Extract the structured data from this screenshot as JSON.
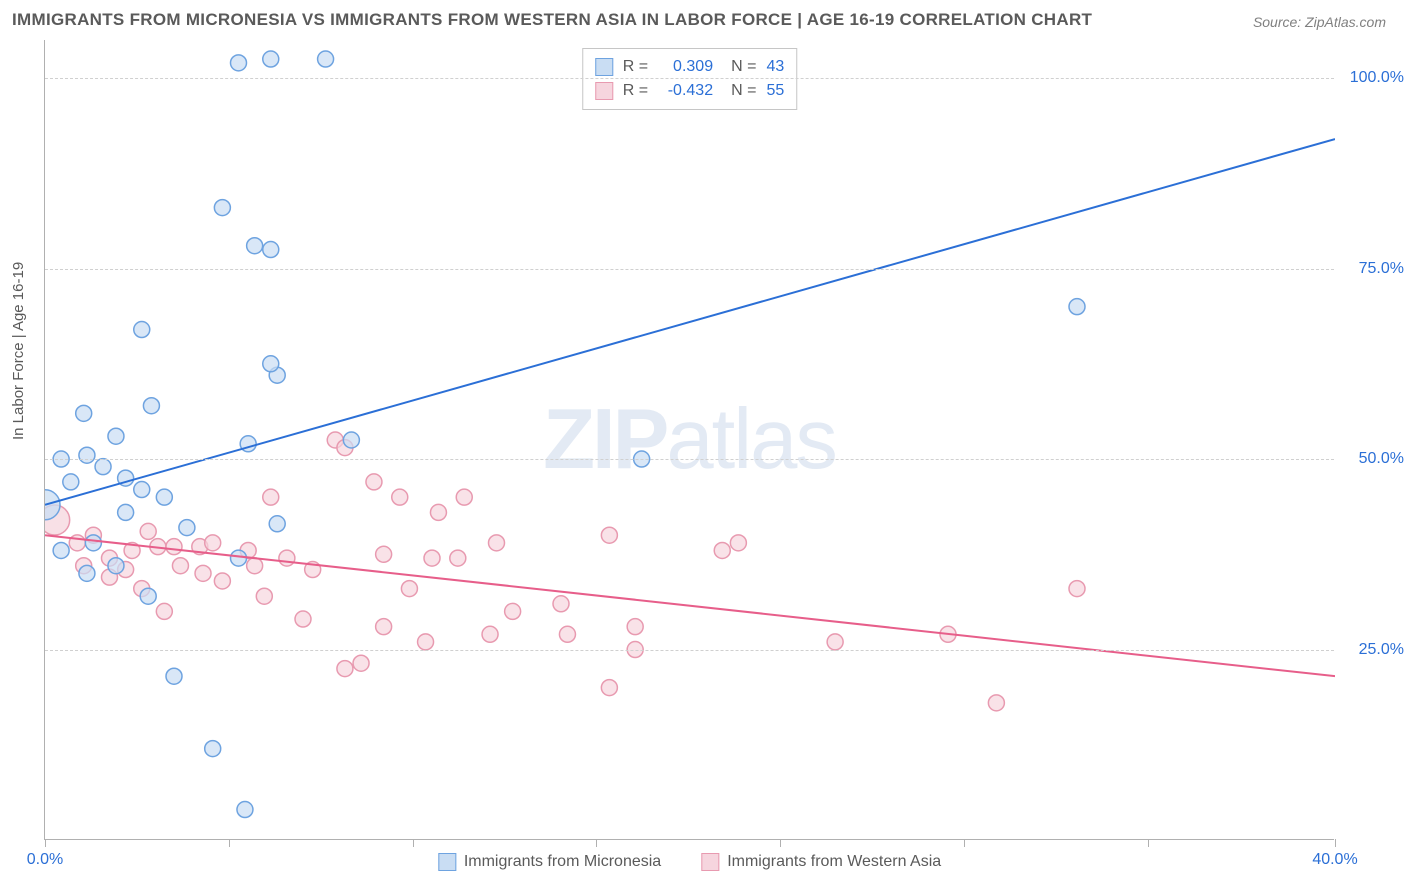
{
  "title": "IMMIGRANTS FROM MICRONESIA VS IMMIGRANTS FROM WESTERN ASIA IN LABOR FORCE | AGE 16-19 CORRELATION CHART",
  "source": "Source: ZipAtlas.com",
  "ylabel": "In Labor Force | Age 16-19",
  "watermark_bold": "ZIP",
  "watermark_rest": "atlas",
  "chart": {
    "type": "scatter",
    "background_color": "#ffffff",
    "grid_color": "#d0d0d0",
    "axis_color": "#b0b0b0",
    "tick_label_color": "#2b6fd6",
    "tick_label_fontsize": 16,
    "axis_label_color": "#5a5a5a",
    "axis_label_fontsize": 15,
    "xlim": [
      0,
      40
    ],
    "ylim": [
      0,
      105
    ],
    "xticks": [
      0,
      5.7,
      11.4,
      17.1,
      22.8,
      28.5,
      34.2,
      40
    ],
    "xtick_labels": [
      "0.0%",
      "",
      "",
      "",
      "",
      "",
      "",
      "40.0%"
    ],
    "yticks": [
      25,
      50,
      75,
      100
    ],
    "ytick_labels": [
      "25.0%",
      "50.0%",
      "75.0%",
      "100.0%"
    ],
    "marker_radius": 8,
    "large_marker_radius": 15,
    "marker_stroke_width": 1.5,
    "line_width": 2,
    "series": [
      {
        "name": "Immigrants from Micronesia",
        "fill_color": "#c9ddf3",
        "stroke_color": "#6ea3e0",
        "line_color": "#2b6fd6",
        "r_value": "0.309",
        "n_value": "43",
        "trend_line": {
          "x1": 0,
          "y1": 44,
          "x2": 40,
          "y2": 92
        },
        "large_points": [
          {
            "x": 0,
            "y": 44
          }
        ],
        "points": [
          {
            "x": 1.3,
            "y": 35
          },
          {
            "x": 0.8,
            "y": 47
          },
          {
            "x": 0.5,
            "y": 50
          },
          {
            "x": 0.5,
            "y": 38
          },
          {
            "x": 1.2,
            "y": 56
          },
          {
            "x": 1.3,
            "y": 50.5
          },
          {
            "x": 1.8,
            "y": 49
          },
          {
            "x": 1.5,
            "y": 39
          },
          {
            "x": 2.5,
            "y": 43
          },
          {
            "x": 2.2,
            "y": 36
          },
          {
            "x": 2.2,
            "y": 53
          },
          {
            "x": 2.5,
            "y": 47.5
          },
          {
            "x": 3.0,
            "y": 46
          },
          {
            "x": 3.3,
            "y": 57
          },
          {
            "x": 3.0,
            "y": 67
          },
          {
            "x": 3.2,
            "y": 32
          },
          {
            "x": 3.7,
            "y": 45
          },
          {
            "x": 4.0,
            "y": 21.5
          },
          {
            "x": 4.4,
            "y": 41
          },
          {
            "x": 5.5,
            "y": 83
          },
          {
            "x": 6.0,
            "y": 102
          },
          {
            "x": 5.2,
            "y": 12
          },
          {
            "x": 6.0,
            "y": 37
          },
          {
            "x": 6.2,
            "y": 4
          },
          {
            "x": 6.3,
            "y": 52
          },
          {
            "x": 6.5,
            "y": 78
          },
          {
            "x": 7.0,
            "y": 102.5
          },
          {
            "x": 7.0,
            "y": 77.5
          },
          {
            "x": 7.2,
            "y": 61
          },
          {
            "x": 7.0,
            "y": 62.5
          },
          {
            "x": 7.2,
            "y": 41.5
          },
          {
            "x": 8.7,
            "y": 102.5
          },
          {
            "x": 9.5,
            "y": 52.5
          },
          {
            "x": 18.5,
            "y": 50
          },
          {
            "x": 32.0,
            "y": 70
          }
        ]
      },
      {
        "name": "Immigrants from Western Asia",
        "fill_color": "#f6d5de",
        "stroke_color": "#e89ab0",
        "line_color": "#e75e8a",
        "r_value": "-0.432",
        "n_value": "55",
        "trend_line": {
          "x1": 0,
          "y1": 40,
          "x2": 40,
          "y2": 21.5
        },
        "large_points": [
          {
            "x": 0.3,
            "y": 42
          }
        ],
        "points": [
          {
            "x": 1.0,
            "y": 39
          },
          {
            "x": 1.2,
            "y": 36
          },
          {
            "x": 1.5,
            "y": 40
          },
          {
            "x": 2.0,
            "y": 37
          },
          {
            "x": 2.0,
            "y": 34.5
          },
          {
            "x": 2.5,
            "y": 35.5
          },
          {
            "x": 2.7,
            "y": 38
          },
          {
            "x": 3.0,
            "y": 33
          },
          {
            "x": 3.2,
            "y": 40.5
          },
          {
            "x": 3.5,
            "y": 38.5
          },
          {
            "x": 3.7,
            "y": 30
          },
          {
            "x": 4.0,
            "y": 38.5
          },
          {
            "x": 4.2,
            "y": 36
          },
          {
            "x": 4.8,
            "y": 38.5
          },
          {
            "x": 4.9,
            "y": 35
          },
          {
            "x": 5.2,
            "y": 39
          },
          {
            "x": 5.5,
            "y": 34
          },
          {
            "x": 6.3,
            "y": 38
          },
          {
            "x": 6.5,
            "y": 36
          },
          {
            "x": 6.8,
            "y": 32
          },
          {
            "x": 7.0,
            "y": 45
          },
          {
            "x": 7.5,
            "y": 37
          },
          {
            "x": 8.0,
            "y": 29
          },
          {
            "x": 8.3,
            "y": 35.5
          },
          {
            "x": 9.0,
            "y": 52.5
          },
          {
            "x": 9.3,
            "y": 51.5
          },
          {
            "x": 9.3,
            "y": 22.5
          },
          {
            "x": 9.8,
            "y": 23.2
          },
          {
            "x": 10.2,
            "y": 47
          },
          {
            "x": 10.5,
            "y": 28
          },
          {
            "x": 10.5,
            "y": 37.5
          },
          {
            "x": 11.0,
            "y": 45
          },
          {
            "x": 11.3,
            "y": 33
          },
          {
            "x": 11.8,
            "y": 26
          },
          {
            "x": 12.0,
            "y": 37
          },
          {
            "x": 12.2,
            "y": 43
          },
          {
            "x": 12.8,
            "y": 37
          },
          {
            "x": 13.0,
            "y": 45
          },
          {
            "x": 13.8,
            "y": 27
          },
          {
            "x": 14.0,
            "y": 39
          },
          {
            "x": 14.5,
            "y": 30
          },
          {
            "x": 16.0,
            "y": 31
          },
          {
            "x": 16.2,
            "y": 27
          },
          {
            "x": 17.5,
            "y": 40
          },
          {
            "x": 17.5,
            "y": 20
          },
          {
            "x": 18.3,
            "y": 28
          },
          {
            "x": 18.3,
            "y": 25
          },
          {
            "x": 21.0,
            "y": 38
          },
          {
            "x": 21.5,
            "y": 39
          },
          {
            "x": 24.5,
            "y": 26
          },
          {
            "x": 28.0,
            "y": 27
          },
          {
            "x": 29.5,
            "y": 18
          },
          {
            "x": 32.0,
            "y": 33
          }
        ]
      }
    ]
  },
  "legend": {
    "r_label": "R =",
    "n_label": "N ="
  }
}
